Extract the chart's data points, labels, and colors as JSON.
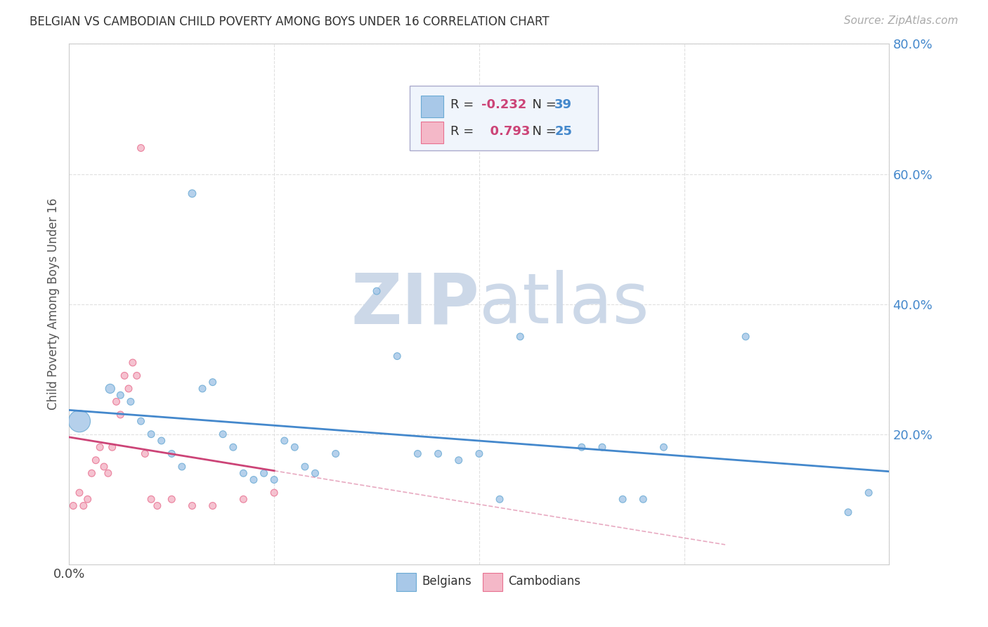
{
  "title": "BELGIAN VS CAMBODIAN CHILD POVERTY AMONG BOYS UNDER 16 CORRELATION CHART",
  "source": "Source: ZipAtlas.com",
  "ylabel": "Child Poverty Among Boys Under 16",
  "xlim": [
    0.0,
    0.4
  ],
  "ylim": [
    0.0,
    0.8
  ],
  "xticks": [
    0.0,
    0.1,
    0.2,
    0.3,
    0.4
  ],
  "yticks": [
    0.2,
    0.4,
    0.6,
    0.8
  ],
  "xtick_labels_shown": {
    "0.0": "0.0%",
    "0.40": "40.0%"
  },
  "ytick_labels": [
    "20.0%",
    "40.0%",
    "60.0%",
    "80.0%"
  ],
  "belgian_color": "#a8c8e8",
  "cambodian_color": "#f4b8c8",
  "belgian_edge": "#6aaad4",
  "cambodian_edge": "#e87090",
  "trend_belgian_color": "#4488cc",
  "trend_cambodian_color": "#cc4477",
  "watermark_color": "#ccd8e8",
  "R_belgian": -0.232,
  "N_belgian": 39,
  "R_cambodian": 0.793,
  "N_cambodian": 25,
  "belgian_x": [
    0.005,
    0.02,
    0.025,
    0.03,
    0.035,
    0.04,
    0.045,
    0.05,
    0.055,
    0.06,
    0.065,
    0.07,
    0.075,
    0.08,
    0.085,
    0.09,
    0.095,
    0.1,
    0.105,
    0.11,
    0.115,
    0.12,
    0.13,
    0.15,
    0.16,
    0.17,
    0.18,
    0.19,
    0.2,
    0.21,
    0.22,
    0.25,
    0.26,
    0.27,
    0.28,
    0.29,
    0.33,
    0.38,
    0.39
  ],
  "belgian_y": [
    0.22,
    0.27,
    0.26,
    0.25,
    0.22,
    0.2,
    0.19,
    0.17,
    0.15,
    0.57,
    0.27,
    0.28,
    0.2,
    0.18,
    0.14,
    0.13,
    0.14,
    0.13,
    0.19,
    0.18,
    0.15,
    0.14,
    0.17,
    0.42,
    0.32,
    0.17,
    0.17,
    0.16,
    0.17,
    0.1,
    0.35,
    0.18,
    0.18,
    0.1,
    0.1,
    0.18,
    0.35,
    0.08,
    0.11
  ],
  "belgian_size": [
    500,
    90,
    50,
    50,
    50,
    50,
    50,
    50,
    50,
    60,
    50,
    50,
    50,
    50,
    50,
    50,
    50,
    50,
    50,
    50,
    50,
    50,
    50,
    50,
    50,
    50,
    50,
    50,
    50,
    50,
    50,
    50,
    50,
    50,
    50,
    50,
    50,
    50,
    50
  ],
  "cambodian_x": [
    0.002,
    0.005,
    0.007,
    0.009,
    0.011,
    0.013,
    0.015,
    0.017,
    0.019,
    0.021,
    0.023,
    0.025,
    0.027,
    0.029,
    0.031,
    0.033,
    0.035,
    0.037,
    0.04,
    0.043,
    0.05,
    0.06,
    0.07,
    0.085,
    0.1
  ],
  "cambodian_y": [
    0.09,
    0.11,
    0.09,
    0.1,
    0.14,
    0.16,
    0.18,
    0.15,
    0.14,
    0.18,
    0.25,
    0.23,
    0.29,
    0.27,
    0.31,
    0.29,
    0.64,
    0.17,
    0.1,
    0.09,
    0.1,
    0.09,
    0.09,
    0.1,
    0.11
  ],
  "cambodian_size": [
    50,
    50,
    50,
    50,
    50,
    50,
    50,
    50,
    50,
    50,
    50,
    50,
    50,
    50,
    50,
    50,
    50,
    50,
    50,
    50,
    50,
    50,
    50,
    50,
    50
  ],
  "background_color": "#ffffff",
  "grid_color": "#dddddd"
}
